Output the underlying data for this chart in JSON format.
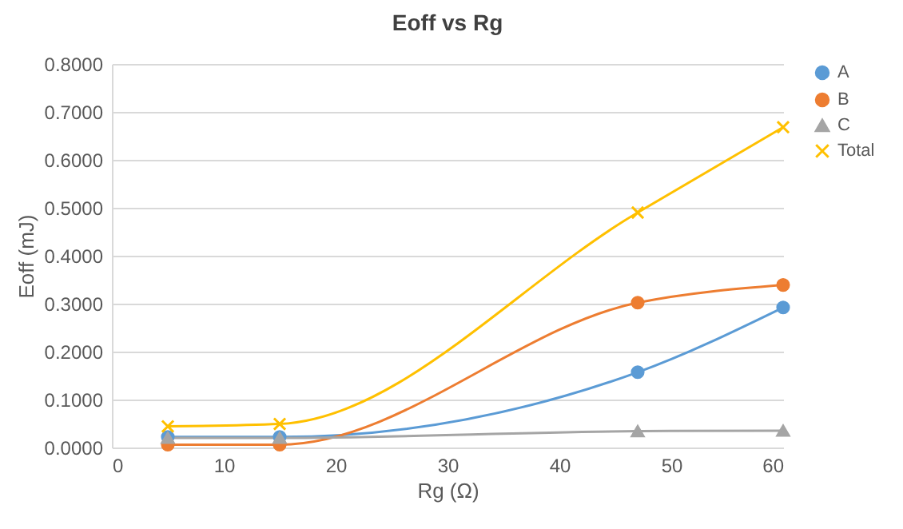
{
  "chart_data": {
    "type": "line",
    "title": "Eoff vs Rg",
    "xlabel": "Rg (Ω)",
    "ylabel": "Eoff (mJ)",
    "x": [
      5,
      15,
      47,
      60
    ],
    "series": [
      {
        "name": "A",
        "color": "#5b9bd5",
        "marker": "circle",
        "values": [
          0.022,
          0.022,
          0.157,
          0.292
        ]
      },
      {
        "name": "B",
        "color": "#ed7d31",
        "marker": "circle",
        "values": [
          0.006,
          0.006,
          0.302,
          0.339
        ]
      },
      {
        "name": "C",
        "color": "#a5a5a5",
        "marker": "triangle",
        "values": [
          0.02,
          0.02,
          0.034,
          0.035
        ]
      },
      {
        "name": "Total",
        "color": "#ffc000",
        "marker": "cross",
        "values": [
          0.044,
          0.049,
          0.49,
          0.668
        ]
      }
    ],
    "xlim": [
      0,
      60
    ],
    "xticks": [
      0,
      10,
      20,
      30,
      40,
      50,
      60
    ],
    "ylim": [
      0,
      0.8
    ],
    "yticks": [
      {
        "value": 0,
        "label": "0.0000"
      },
      {
        "value": 0.1,
        "label": "0.1000"
      },
      {
        "value": 0.2,
        "label": "0.2000"
      },
      {
        "value": 0.3,
        "label": "0.3000"
      },
      {
        "value": 0.4,
        "label": "0.4000"
      },
      {
        "value": 0.5,
        "label": "0.5000"
      },
      {
        "value": 0.6,
        "label": "0.6000"
      },
      {
        "value": 0.7,
        "label": "0.7000"
      },
      {
        "value": 0.8,
        "label": "0.8000"
      }
    ],
    "grid": "y",
    "legend": "right",
    "line_style": "solid"
  }
}
